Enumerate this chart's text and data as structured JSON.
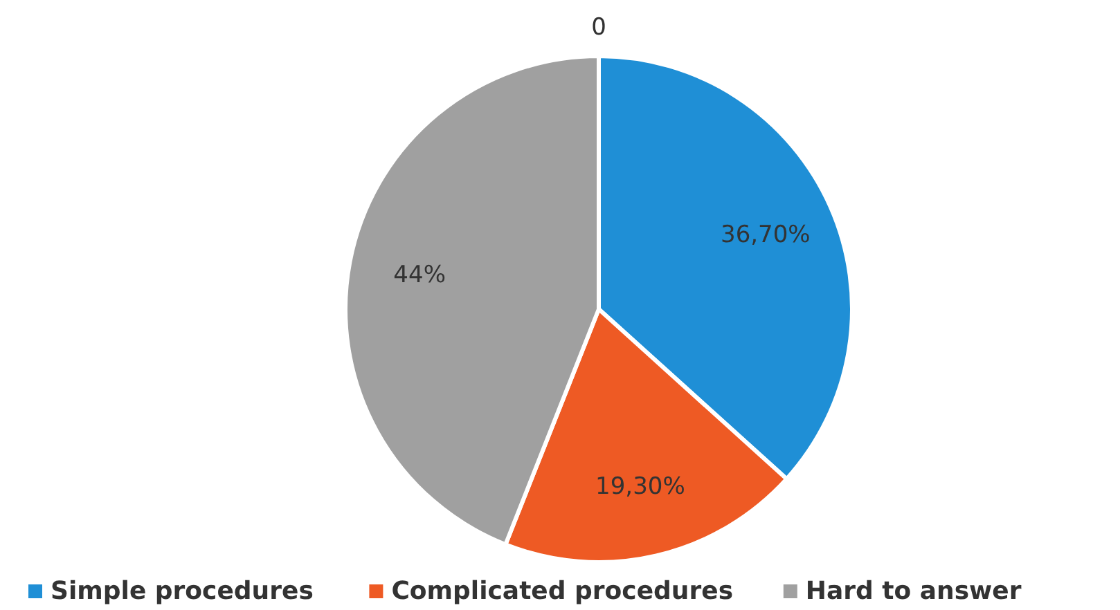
{
  "chart_data": {
    "type": "pie",
    "categories": [
      "Simple procedures",
      "Complicated procedures",
      "Hard to answer",
      null
    ],
    "values": [
      36.7,
      19.3,
      44,
      0
    ],
    "colors": [
      "#1f8fd6",
      "#ee5a24",
      "#a0a0a0",
      "#f2b800"
    ],
    "value_labels": [
      "36,70%",
      "19,30%",
      "44%",
      "0"
    ],
    "legend": "bottom"
  }
}
